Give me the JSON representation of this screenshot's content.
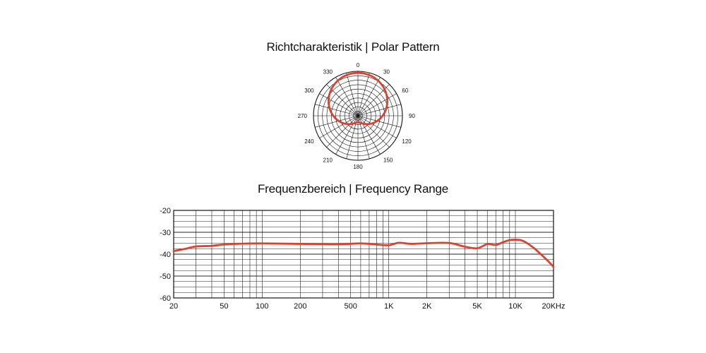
{
  "chart_data": [
    {
      "type": "polar",
      "title": "Richtcharakteristik | Polar Pattern",
      "angle_labels": [
        "0",
        "30",
        "60",
        "90",
        "120",
        "150",
        "180",
        "210",
        "240",
        "270",
        "300",
        "330"
      ],
      "angles": [
        0,
        30,
        60,
        90,
        120,
        150,
        180,
        210,
        240,
        270,
        300,
        330
      ],
      "rings": 10,
      "spokes": 24,
      "series": [
        {
          "color": "#d9432f",
          "pattern": "cardioid",
          "angles": [
            0,
            30,
            60,
            90,
            120,
            150,
            180,
            210,
            240,
            270,
            300,
            330,
            360
          ],
          "levels": [
            1.0,
            0.93,
            0.75,
            0.5,
            0.25,
            0.07,
            0.0,
            0.07,
            0.25,
            0.5,
            0.75,
            0.93,
            1.0
          ]
        }
      ]
    },
    {
      "type": "line",
      "title": "Frequenzbereich | Frequency Range",
      "xscale": "log",
      "xlim": [
        20,
        20000
      ],
      "ylim": [
        -60,
        -20
      ],
      "x_tick_values": [
        20,
        50,
        100,
        200,
        500,
        1000,
        2000,
        5000,
        10000,
        20000
      ],
      "x_tick_labels": [
        "20",
        "50",
        "100",
        "200",
        "500",
        "1K",
        "2K",
        "5K",
        "10K",
        "20KHz"
      ],
      "y_ticks": [
        -20,
        -30,
        -40,
        -50,
        -60
      ],
      "y_tick_labels": [
        "-20",
        "-30",
        "-40",
        "-50",
        "-60"
      ],
      "grid": true,
      "series": [
        {
          "color": "#d9432f",
          "x": [
            20,
            25,
            30,
            40,
            50,
            70,
            100,
            200,
            400,
            600,
            800,
            1000,
            1200,
            1500,
            2000,
            3000,
            4000,
            5000,
            6000,
            7000,
            8000,
            9000,
            10000,
            11000,
            12000,
            14000,
            16000,
            18000,
            20000
          ],
          "y": [
            -38.6,
            -37.5,
            -36.5,
            -36.2,
            -35.6,
            -35.2,
            -35.1,
            -35.3,
            -35.5,
            -35.1,
            -35.6,
            -35.9,
            -34.8,
            -35.3,
            -35.0,
            -34.9,
            -36.6,
            -37.3,
            -35.4,
            -35.8,
            -34.5,
            -33.6,
            -33.4,
            -33.6,
            -34.5,
            -37.2,
            -40.2,
            -43.0,
            -45.8
          ]
        }
      ]
    }
  ]
}
